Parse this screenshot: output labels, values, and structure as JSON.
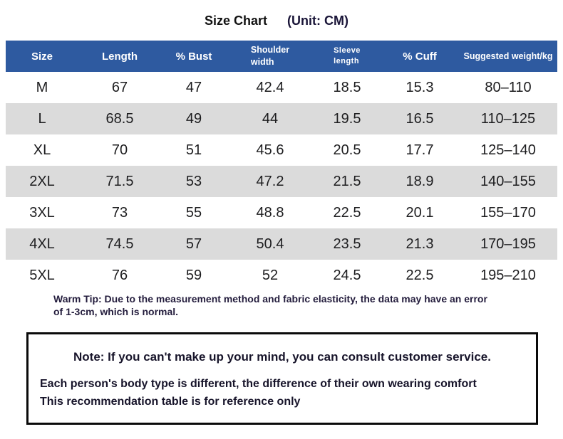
{
  "title": {
    "main": "Size Chart",
    "unit": "(Unit: CM)"
  },
  "chart_data": {
    "type": "table",
    "title": "Size Chart (Unit: CM)",
    "columns": [
      "Size",
      "Length",
      "% Bust",
      "Shoulder width",
      "Sleeve length",
      "% Cuff",
      "Suggested weight/kg"
    ],
    "rows": [
      [
        "M",
        "67",
        "47",
        "42.4",
        "18.5",
        "15.3",
        "80–110"
      ],
      [
        "L",
        "68.5",
        "49",
        "44",
        "19.5",
        "16.5",
        "110–125"
      ],
      [
        "XL",
        "70",
        "51",
        "45.6",
        "20.5",
        "17.7",
        "125–140"
      ],
      [
        "2XL",
        "71.5",
        "53",
        "47.2",
        "21.5",
        "18.9",
        "140–155"
      ],
      [
        "3XL",
        "73",
        "55",
        "48.8",
        "22.5",
        "20.1",
        "155–170"
      ],
      [
        "4XL",
        "74.5",
        "57",
        "50.4",
        "23.5",
        "21.3",
        "170–195"
      ],
      [
        "5XL",
        "76",
        "59",
        "52",
        "24.5",
        "22.5",
        "195–210"
      ]
    ]
  },
  "warm_tip": {
    "line1": "Warm Tip: Due to the measurement method and fabric elasticity, the data may have an error",
    "line2": "of 1-3cm, which is normal."
  },
  "note_box": {
    "heading": "Note: If you can't make up your mind, you can consult customer service.",
    "body_line1": "Each person's body type is different, the difference of their own wearing comfort",
    "body_line2": "This recommendation table is for reference only"
  },
  "colors": {
    "header_bg": "#2e5aa0",
    "header_text": "#ffffff",
    "row_alt_bg": "#dbdbdb",
    "unit_text": "#1a1538"
  }
}
